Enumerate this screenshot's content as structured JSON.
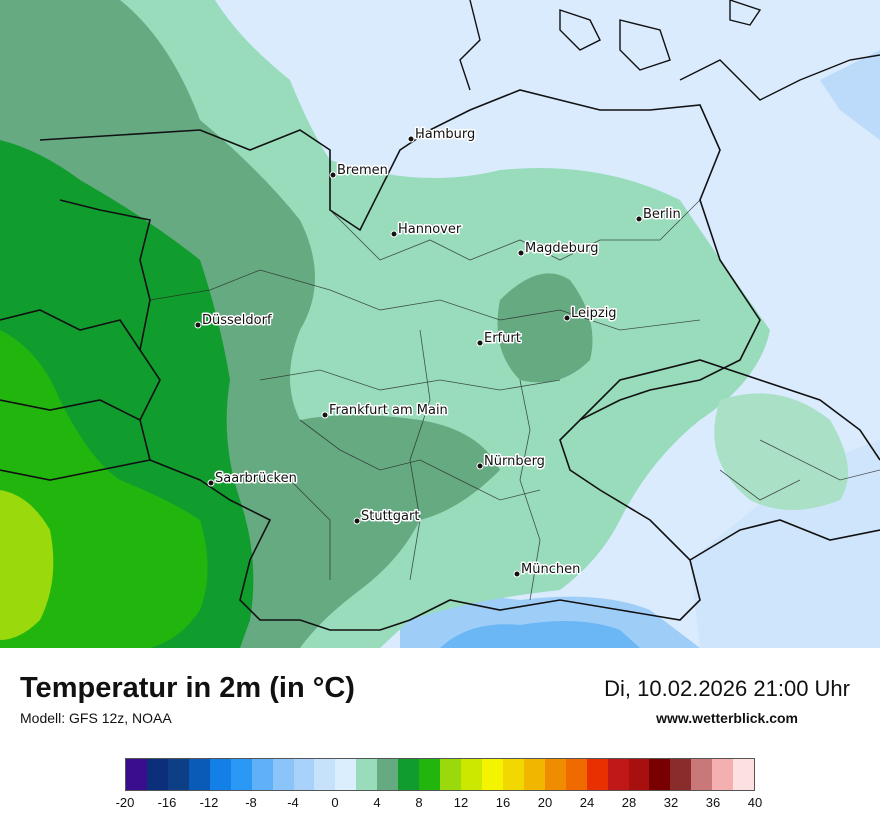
{
  "map": {
    "cities": [
      {
        "name": "Hamburg"
      },
      {
        "name": "Bremen"
      },
      {
        "name": "Berlin"
      },
      {
        "name": "Hannover"
      },
      {
        "name": "Magdeburg"
      },
      {
        "name": "Leipzig"
      },
      {
        "name": "Düsseldorf"
      },
      {
        "name": "Erfurt"
      },
      {
        "name": "Frankfurt am Main"
      },
      {
        "name": "Nürnberg"
      },
      {
        "name": "Saarbrücken"
      },
      {
        "name": "Stuttgart"
      },
      {
        "name": "München"
      }
    ]
  },
  "header": {
    "title": "Temperatur in 2m (in °C)",
    "model": "Modell: GFS 12z, NOAA",
    "datetime": "Di, 10.02.2026 21:00 Uhr",
    "site": "www.wetterblick.com"
  },
  "legend": {
    "colors": [
      "#3a0d8f",
      "#0b2f7a",
      "#0c3f86",
      "#0a5ab8",
      "#1280e6",
      "#2a98f4",
      "#5fb0f6",
      "#8bc4f8",
      "#a8d2fa",
      "#c6e2fb",
      "#dbeefd",
      "#98dcbc",
      "#66aa82",
      "#119c2e",
      "#22b50e",
      "#9ad90c",
      "#cce800",
      "#f4f400",
      "#f1d800",
      "#f1b600",
      "#f08c00",
      "#ef6a00",
      "#e83000",
      "#c01818",
      "#a80f0f",
      "#780000",
      "#8a2c2c",
      "#c87878",
      "#f4b0b0",
      "#fde0e0"
    ],
    "ticks": [
      "-20",
      "-16",
      "-12",
      "-8",
      "-4",
      "0",
      "4",
      "8",
      "12",
      "16",
      "20",
      "24",
      "28",
      "32",
      "36",
      "40"
    ]
  }
}
